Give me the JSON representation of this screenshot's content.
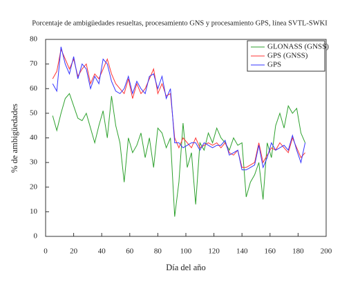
{
  "chart_data": {
    "type": "line",
    "title": "Porcentaje de ambigüedades resueltas, procesamiento GNS y procesamiento GPS, línea SVTL-SWKI",
    "x_label": "Día del año",
    "y_label": "% de ambigüedades",
    "x": [
      5,
      8,
      11,
      14,
      17,
      20,
      23,
      26,
      29,
      32,
      35,
      38,
      41,
      44,
      47,
      50,
      53,
      56,
      59,
      62,
      65,
      68,
      71,
      74,
      77,
      80,
      83,
      86,
      89,
      92,
      95,
      98,
      101,
      104,
      107,
      110,
      113,
      116,
      119,
      122,
      125,
      128,
      131,
      134,
      137,
      140,
      143,
      146,
      149,
      152,
      155,
      158,
      161,
      164,
      167,
      170,
      173,
      176,
      179,
      182,
      185
    ],
    "series": [
      {
        "name": "GLONASS (GNSS)",
        "color": "#2ca02c",
        "values": [
          49,
          43,
          50,
          56,
          58,
          53,
          48,
          47,
          50,
          44,
          38,
          45,
          51,
          40,
          57,
          45,
          38,
          22,
          40,
          34,
          37,
          42,
          32,
          40,
          28,
          44,
          42,
          36,
          40,
          8,
          22,
          46,
          28,
          34,
          13,
          38,
          35,
          42,
          38,
          44,
          40,
          38,
          35,
          40,
          37,
          38,
          16,
          22,
          25,
          30,
          15,
          38,
          32,
          45,
          50,
          44,
          53,
          50,
          52,
          42,
          38
        ]
      },
      {
        "name": "GPS (GNSS)",
        "color": "#ff3333",
        "values": [
          64,
          67,
          76,
          72,
          68,
          72,
          65,
          68,
          70,
          62,
          66,
          64,
          68,
          72,
          66,
          62,
          60,
          58,
          64,
          56,
          62,
          58,
          60,
          64,
          68,
          58,
          62,
          57,
          58,
          40,
          36,
          40,
          38,
          36,
          40,
          36,
          37,
          38,
          37,
          38,
          36,
          38,
          34,
          33,
          35,
          28,
          28,
          29,
          30,
          38,
          30,
          33,
          36,
          35,
          38,
          36,
          34,
          40,
          36,
          32,
          34
        ]
      },
      {
        "name": "GPS",
        "color": "#3333ff",
        "values": [
          62,
          59,
          77,
          70,
          66,
          73,
          64,
          70,
          68,
          60,
          65,
          62,
          72,
          70,
          63,
          59,
          58,
          60,
          65,
          58,
          63,
          60,
          58,
          65,
          66,
          60,
          65,
          56,
          60,
          38,
          38,
          36,
          37,
          38,
          38,
          35,
          38,
          37,
          36,
          37,
          37,
          39,
          33,
          34,
          35,
          27,
          27,
          28,
          29,
          37,
          28,
          32,
          38,
          35,
          36,
          37,
          35,
          41,
          35,
          30,
          38
        ]
      }
    ],
    "xlim": [
      0,
      200
    ],
    "xticks": [
      0,
      20,
      40,
      60,
      80,
      100,
      120,
      140,
      160,
      180,
      200
    ],
    "ylim": [
      0,
      80
    ],
    "yticks": [
      0,
      10,
      20,
      30,
      40,
      50,
      60,
      70,
      80
    ],
    "legend": "upper right"
  }
}
